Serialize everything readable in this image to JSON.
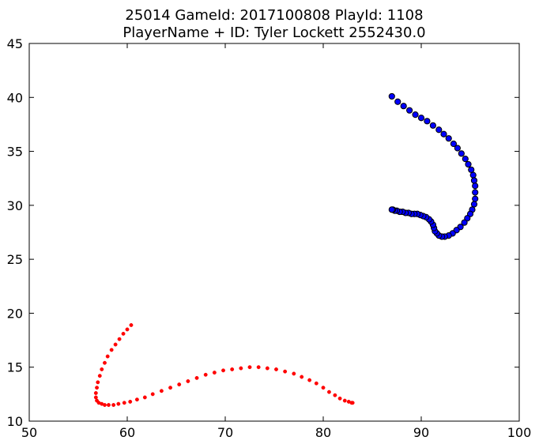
{
  "chart_data": {
    "type": "scatter",
    "title_line1": "25014 GameId: 2017100808 PlayId: 1108",
    "title_line2": "PlayerName + ID: Tyler Lockett 2552430.0",
    "xlabel": "",
    "ylabel": "",
    "xlim": [
      50,
      100
    ],
    "ylim": [
      10,
      45
    ],
    "xticks": [
      50,
      60,
      70,
      80,
      90,
      100
    ],
    "yticks": [
      10,
      15,
      20,
      25,
      30,
      35,
      40,
      45
    ],
    "grid": false,
    "series": [
      {
        "color": "#0000ff",
        "marker": "large-circle-black-edge",
        "x": [
          87.0,
          87.6,
          88.2,
          88.8,
          89.4,
          90.0,
          90.6,
          91.2,
          91.8,
          92.3,
          92.8,
          93.3,
          93.7,
          94.1,
          94.5,
          94.8,
          95.1,
          95.3,
          95.4,
          95.5,
          95.5,
          95.5,
          95.4,
          95.2,
          95.0,
          94.7,
          94.4,
          94.0,
          93.6,
          93.2,
          92.8,
          92.4,
          92.1,
          91.8,
          91.6,
          91.4,
          91.3,
          91.2,
          91.0,
          90.8,
          90.5,
          90.2,
          89.9,
          89.6,
          89.3,
          89.0,
          88.7,
          88.4,
          88.1,
          87.8,
          87.5,
          87.3,
          87.1,
          87.0
        ],
        "y": [
          40.1,
          39.6,
          39.2,
          38.8,
          38.4,
          38.1,
          37.8,
          37.4,
          37.0,
          36.6,
          36.2,
          35.7,
          35.3,
          34.8,
          34.3,
          33.8,
          33.3,
          32.8,
          32.3,
          31.8,
          31.2,
          30.6,
          30.1,
          29.6,
          29.2,
          28.8,
          28.4,
          28.0,
          27.7,
          27.4,
          27.2,
          27.1,
          27.1,
          27.2,
          27.4,
          27.6,
          27.9,
          28.2,
          28.5,
          28.7,
          28.9,
          29.0,
          29.1,
          29.2,
          29.2,
          29.2,
          29.3,
          29.3,
          29.4,
          29.4,
          29.5,
          29.5,
          29.6,
          29.6
        ]
      },
      {
        "color": "#ff0000",
        "marker": "small-dot",
        "x": [
          60.4,
          60.0,
          59.6,
          59.2,
          58.8,
          58.4,
          58.0,
          57.7,
          57.4,
          57.2,
          57.0,
          56.9,
          56.8,
          56.8,
          56.9,
          57.1,
          57.4,
          57.7,
          58.1,
          58.6,
          59.1,
          59.7,
          60.3,
          61.0,
          61.8,
          62.6,
          63.5,
          64.4,
          65.3,
          66.2,
          67.1,
          68.0,
          68.9,
          69.8,
          70.7,
          71.6,
          72.5,
          73.4,
          74.3,
          75.2,
          76.1,
          77.0,
          77.8,
          78.6,
          79.3,
          80.0,
          80.6,
          81.2,
          81.7,
          82.2,
          82.6,
          82.9,
          83.0
        ],
        "y": [
          18.9,
          18.5,
          18.1,
          17.6,
          17.1,
          16.6,
          16.0,
          15.4,
          14.8,
          14.2,
          13.6,
          13.1,
          12.6,
          12.2,
          11.9,
          11.7,
          11.6,
          11.5,
          11.5,
          11.5,
          11.6,
          11.7,
          11.8,
          12.0,
          12.2,
          12.5,
          12.8,
          13.1,
          13.4,
          13.7,
          14.0,
          14.3,
          14.5,
          14.7,
          14.8,
          14.9,
          15.0,
          15.0,
          14.9,
          14.8,
          14.6,
          14.4,
          14.1,
          13.8,
          13.5,
          13.1,
          12.7,
          12.4,
          12.1,
          11.9,
          11.8,
          11.7,
          11.7
        ]
      }
    ]
  }
}
